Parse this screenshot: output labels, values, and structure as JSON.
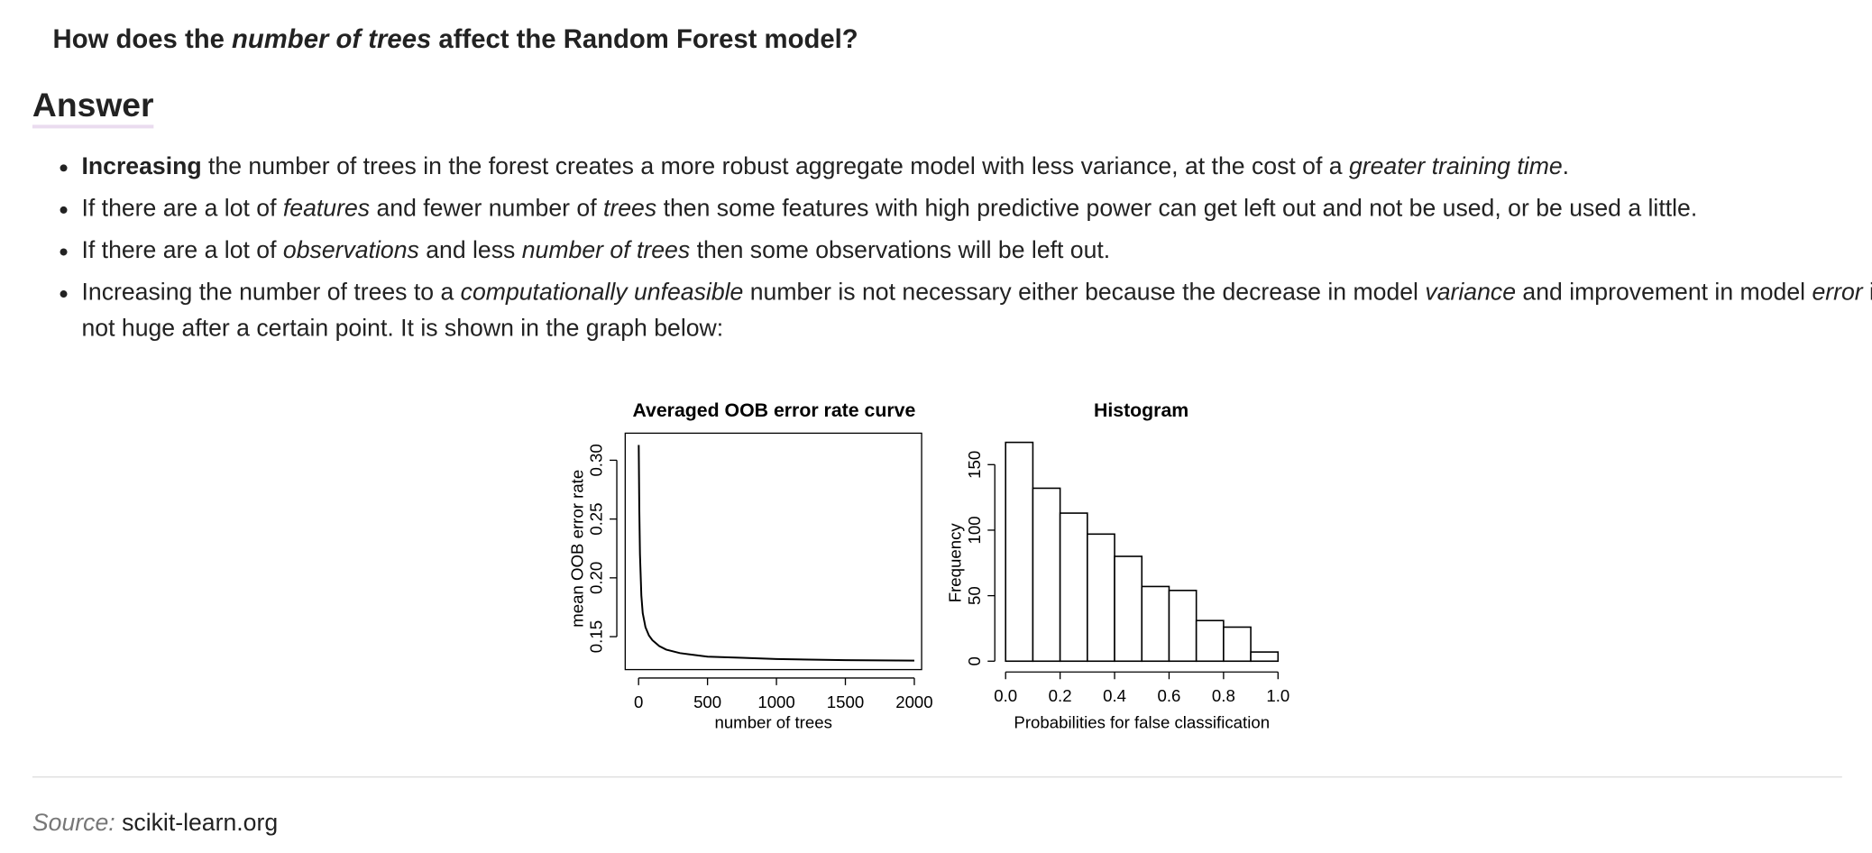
{
  "header": {
    "title": [
      {
        "text": "How does the ",
        "style": "bold"
      },
      {
        "text": "number of trees",
        "style": "bold-italic"
      },
      {
        "text": " affect the Random Forest model?",
        "style": "bold"
      }
    ]
  },
  "answer": {
    "heading": "Answer",
    "bullets": [
      [
        {
          "text": "Increasing",
          "style": "bold"
        },
        {
          "text": " the number of trees in the forest creates a more robust aggregate model with less variance, at the cost of a ",
          "style": "normal"
        },
        {
          "text": "greater training time",
          "style": "italic"
        },
        {
          "text": ".",
          "style": "normal"
        }
      ],
      [
        {
          "text": "If there are a lot of ",
          "style": "normal"
        },
        {
          "text": "features",
          "style": "italic"
        },
        {
          "text": " and fewer number of ",
          "style": "normal"
        },
        {
          "text": "trees",
          "style": "italic"
        },
        {
          "text": " then some features with high predictive power can get left out and not be used, or be used a little.",
          "style": "normal"
        }
      ],
      [
        {
          "text": "If there are a lot of ",
          "style": "normal"
        },
        {
          "text": "observations",
          "style": "italic"
        },
        {
          "text": " and less ",
          "style": "normal"
        },
        {
          "text": "number of trees",
          "style": "italic"
        },
        {
          "text": " then some observations will be left out.",
          "style": "normal"
        }
      ],
      [
        {
          "text": "Increasing the number of trees to a ",
          "style": "normal"
        },
        {
          "text": "computationally unfeasible",
          "style": "italic"
        },
        {
          "text": " number is not necessary either because the decrease in model ",
          "style": "normal"
        },
        {
          "text": "variance",
          "style": "italic"
        },
        {
          "text": " and improvement in model ",
          "style": "normal"
        },
        {
          "text": "error",
          "style": "italic"
        },
        {
          "text": " is not huge after a certain point. It is shown in the graph below:",
          "style": "normal"
        }
      ]
    ]
  },
  "chart_data": [
    {
      "type": "line",
      "title": "Averaged OOB error rate curve",
      "xlabel": "number of trees",
      "ylabel": "mean OOB error rate",
      "x": [
        1,
        5,
        10,
        20,
        30,
        50,
        75,
        100,
        150,
        200,
        300,
        500,
        750,
        1000,
        1500,
        2000
      ],
      "values": [
        0.313,
        0.26,
        0.22,
        0.185,
        0.17,
        0.158,
        0.151,
        0.147,
        0.142,
        0.139,
        0.136,
        0.133,
        0.132,
        0.131,
        0.13,
        0.1296
      ],
      "color": "#000000",
      "xlim": [
        -97,
        2053
      ],
      "xticks": [
        0,
        500,
        1000,
        1500,
        2000
      ],
      "ylim": [
        0.122,
        0.323
      ],
      "yticks": [
        0.15,
        {
          "value": 0.2,
          "label": "0.20"
        },
        0.25,
        {
          "value": 0.3,
          "label": "0.30"
        }
      ]
    },
    {
      "type": "histogram",
      "title": "Histogram",
      "xlabel": "Probabilities for false classification",
      "ylabel": "Frequency",
      "bins": [
        0,
        0.1,
        0.2,
        0.3,
        0.4,
        0.5,
        0.6,
        0.7,
        0.8,
        0.9,
        1
      ],
      "values": [
        167,
        132,
        113,
        97,
        80,
        57,
        54,
        31,
        26,
        7
      ],
      "color": "#ffffff",
      "xlim": [
        0,
        1
      ],
      "xticks": [
        {
          "value": 0,
          "label": "0.0"
        },
        0.2,
        0.4,
        0.6,
        0.8,
        {
          "value": 1,
          "label": "1.0"
        }
      ],
      "ylim": [
        0,
        174
      ],
      "yticks": [
        0,
        50,
        100,
        150
      ]
    }
  ],
  "source": {
    "label": "Source:",
    "text": "scikit-learn.org"
  }
}
